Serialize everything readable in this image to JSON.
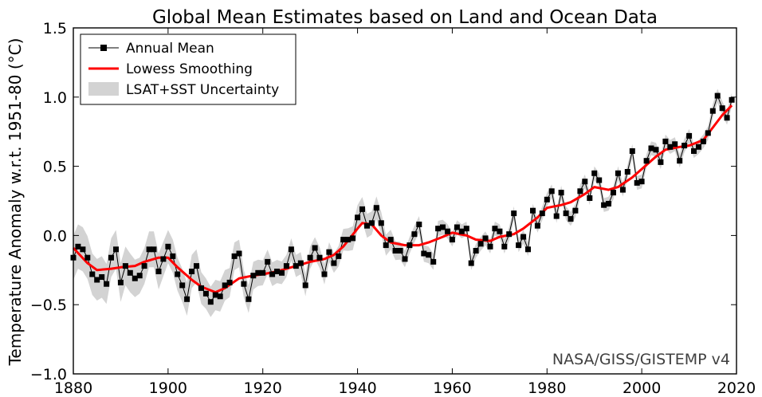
{
  "chart_data": {
    "type": "line",
    "title": "Global Mean Estimates based on Land and Ocean Data",
    "xlabel": "",
    "ylabel": "Temperature Anomaly w.r.t. 1951-80 (°C)",
    "xlim": [
      1880,
      2020
    ],
    "ylim": [
      -1.0,
      1.5
    ],
    "xticks": [
      1880,
      1900,
      1920,
      1940,
      1960,
      1980,
      2000,
      2020
    ],
    "yticks": [
      -1.0,
      -0.5,
      0.0,
      0.5,
      1.0,
      1.5
    ],
    "grid": false,
    "legend_position": "top-left",
    "source_label": "NASA/GISS/GISTEMP v4",
    "series": [
      {
        "name": "Annual Mean",
        "kind": "line-with-square-markers",
        "color": "#000000",
        "x": [
          1880,
          1881,
          1882,
          1883,
          1884,
          1885,
          1886,
          1887,
          1888,
          1889,
          1890,
          1891,
          1892,
          1893,
          1894,
          1895,
          1896,
          1897,
          1898,
          1899,
          1900,
          1901,
          1902,
          1903,
          1904,
          1905,
          1906,
          1907,
          1908,
          1909,
          1910,
          1911,
          1912,
          1913,
          1914,
          1915,
          1916,
          1917,
          1918,
          1919,
          1920,
          1921,
          1922,
          1923,
          1924,
          1925,
          1926,
          1927,
          1928,
          1929,
          1930,
          1931,
          1932,
          1933,
          1934,
          1935,
          1936,
          1937,
          1938,
          1939,
          1940,
          1941,
          1942,
          1943,
          1944,
          1945,
          1946,
          1947,
          1948,
          1949,
          1950,
          1951,
          1952,
          1953,
          1954,
          1955,
          1956,
          1957,
          1958,
          1959,
          1960,
          1961,
          1962,
          1963,
          1964,
          1965,
          1966,
          1967,
          1968,
          1969,
          1970,
          1971,
          1972,
          1973,
          1974,
          1975,
          1976,
          1977,
          1978,
          1979,
          1980,
          1981,
          1982,
          1983,
          1984,
          1985,
          1986,
          1987,
          1988,
          1989,
          1990,
          1991,
          1992,
          1993,
          1994,
          1995,
          1996,
          1997,
          1998,
          1999,
          2000,
          2001,
          2002,
          2003,
          2004,
          2005,
          2006,
          2007,
          2008,
          2009,
          2010,
          2011,
          2012,
          2013,
          2014,
          2015,
          2016,
          2017,
          2018,
          2019
        ],
        "values": [
          -0.16,
          -0.08,
          -0.1,
          -0.16,
          -0.28,
          -0.32,
          -0.3,
          -0.35,
          -0.16,
          -0.1,
          -0.34,
          -0.22,
          -0.27,
          -0.31,
          -0.29,
          -0.22,
          -0.1,
          -0.1,
          -0.26,
          -0.17,
          -0.08,
          -0.15,
          -0.28,
          -0.36,
          -0.46,
          -0.26,
          -0.22,
          -0.38,
          -0.42,
          -0.48,
          -0.43,
          -0.44,
          -0.36,
          -0.34,
          -0.15,
          -0.13,
          -0.35,
          -0.46,
          -0.29,
          -0.27,
          -0.27,
          -0.19,
          -0.28,
          -0.26,
          -0.27,
          -0.22,
          -0.1,
          -0.22,
          -0.2,
          -0.36,
          -0.16,
          -0.09,
          -0.16,
          -0.28,
          -0.12,
          -0.2,
          -0.15,
          -0.03,
          -0.03,
          -0.02,
          0.13,
          0.19,
          0.07,
          0.09,
          0.2,
          0.09,
          -0.07,
          -0.03,
          -0.11,
          -0.11,
          -0.17,
          -0.07,
          0.01,
          0.08,
          -0.13,
          -0.14,
          -0.19,
          0.05,
          0.06,
          0.03,
          -0.03,
          0.06,
          0.03,
          0.05,
          -0.2,
          -0.11,
          -0.06,
          -0.02,
          -0.08,
          0.05,
          0.03,
          -0.08,
          0.01,
          0.16,
          -0.07,
          -0.01,
          -0.1,
          0.18,
          0.07,
          0.16,
          0.26,
          0.32,
          0.14,
          0.31,
          0.16,
          0.12,
          0.18,
          0.32,
          0.39,
          0.27,
          0.45,
          0.4,
          0.22,
          0.23,
          0.31,
          0.45,
          0.33,
          0.46,
          0.61,
          0.38,
          0.39,
          0.54,
          0.63,
          0.62,
          0.53,
          0.68,
          0.64,
          0.66,
          0.54,
          0.65,
          0.72,
          0.61,
          0.64,
          0.68,
          0.74,
          0.9,
          1.01,
          0.92,
          0.85,
          0.98
        ]
      },
      {
        "name": "Lowess Smoothing",
        "kind": "line",
        "color": "#ff0000",
        "x": [
          1880,
          1883,
          1885,
          1888,
          1890,
          1893,
          1895,
          1898,
          1900,
          1902,
          1905,
          1907,
          1910,
          1912,
          1915,
          1918,
          1920,
          1923,
          1925,
          1928,
          1930,
          1933,
          1935,
          1937,
          1940,
          1941,
          1943,
          1945,
          1947,
          1950,
          1953,
          1955,
          1958,
          1960,
          1963,
          1965,
          1968,
          1970,
          1973,
          1975,
          1978,
          1980,
          1983,
          1985,
          1988,
          1990,
          1993,
          1995,
          1998,
          2000,
          2003,
          2005,
          2008,
          2010,
          2013,
          2015,
          2017,
          2019
        ],
        "values": [
          -0.09,
          -0.2,
          -0.25,
          -0.24,
          -0.23,
          -0.22,
          -0.19,
          -0.16,
          -0.16,
          -0.23,
          -0.32,
          -0.37,
          -0.41,
          -0.38,
          -0.31,
          -0.29,
          -0.28,
          -0.26,
          -0.24,
          -0.21,
          -0.19,
          -0.17,
          -0.14,
          -0.08,
          0.05,
          0.09,
          0.08,
          0.0,
          -0.05,
          -0.07,
          -0.07,
          -0.05,
          -0.01,
          0.02,
          0.0,
          -0.03,
          -0.04,
          -0.01,
          0.01,
          0.05,
          0.13,
          0.2,
          0.22,
          0.24,
          0.3,
          0.35,
          0.33,
          0.35,
          0.42,
          0.48,
          0.57,
          0.62,
          0.64,
          0.65,
          0.69,
          0.78,
          0.87,
          0.94
        ]
      },
      {
        "name": "LSAT+SST Uncertainty",
        "kind": "band",
        "color": "#d3d3d3",
        "x": [
          1880,
          1882,
          1884,
          1886,
          1888,
          1890,
          1892,
          1894,
          1896,
          1898,
          1900,
          1902,
          1904,
          1906,
          1908,
          1910,
          1912,
          1914,
          1916,
          1918,
          1920,
          1925,
          1930,
          1935,
          1940,
          1945,
          1950,
          1955,
          1960,
          1965,
          1970,
          1975,
          1980,
          1985,
          1990,
          1995,
          2000,
          2005,
          2010,
          2015,
          2019
        ],
        "half_width": [
          0.16,
          0.16,
          0.15,
          0.15,
          0.14,
          0.14,
          0.14,
          0.13,
          0.13,
          0.13,
          0.12,
          0.12,
          0.12,
          0.12,
          0.11,
          0.11,
          0.11,
          0.1,
          0.1,
          0.1,
          0.09,
          0.08,
          0.08,
          0.07,
          0.09,
          0.08,
          0.06,
          0.06,
          0.05,
          0.05,
          0.05,
          0.05,
          0.05,
          0.05,
          0.05,
          0.05,
          0.05,
          0.05,
          0.05,
          0.05,
          0.05
        ]
      }
    ]
  }
}
